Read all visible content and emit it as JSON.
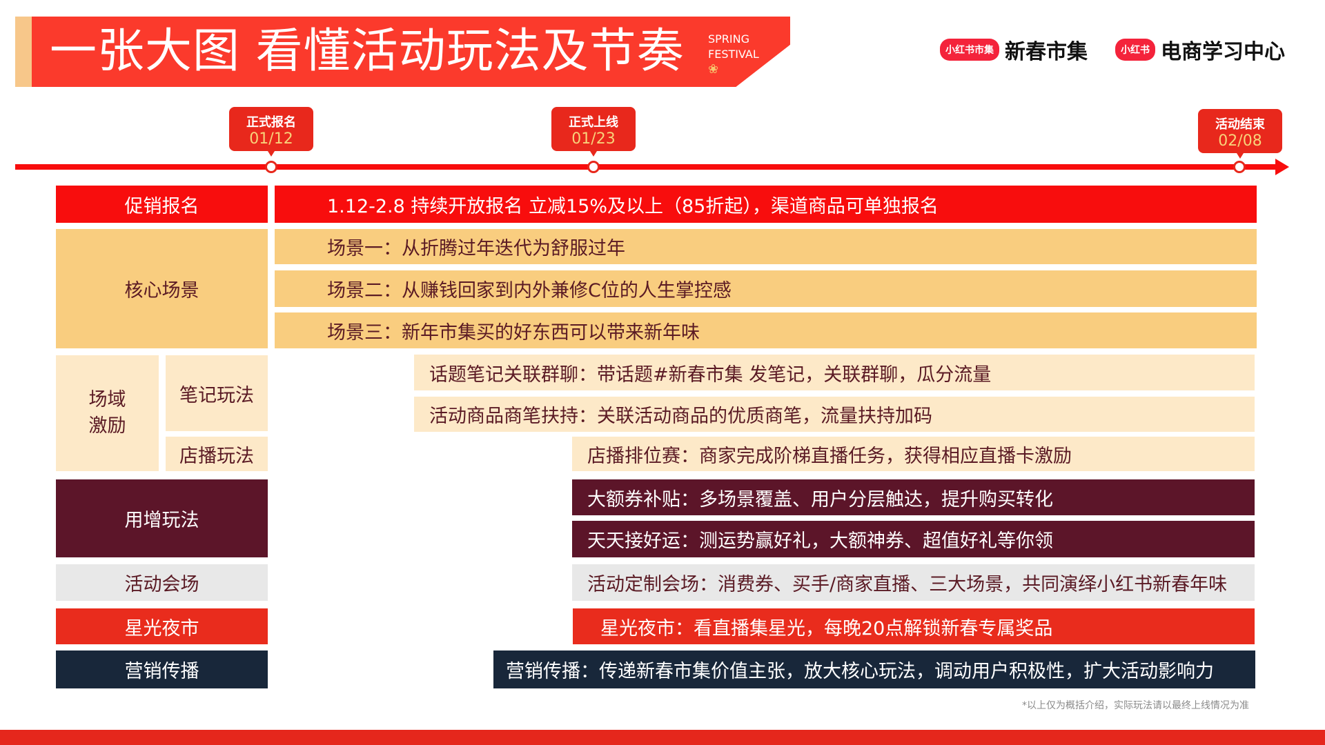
{
  "header": {
    "title": "一张大图 看懂活动玩法及节奏",
    "spring": "SPRING",
    "festival": "FESTIVAL",
    "logo1": {
      "badge": "小红书市集",
      "text": "新春市集"
    },
    "logo2": {
      "badge": "小红书",
      "text": "电商学习中心"
    }
  },
  "timeline": [
    {
      "label": "正式报名",
      "date": "01/12"
    },
    {
      "label": "正式上线",
      "date": "01/23"
    },
    {
      "label": "活动结束",
      "date": "02/08"
    }
  ],
  "rows": {
    "promo": {
      "label": "促销报名",
      "text": "1.12-2.8 持续开放报名 立减15%及以上（85折起），渠道商品可单独报名"
    },
    "core": {
      "label": "核心场景",
      "items": [
        "场景一：从折腾过年迭代为舒服过年",
        "场景二：从赚钱回家到内外兼修C位的人生掌控感",
        "场景三：新年市集买的好东西可以带来新年味"
      ]
    },
    "field": {
      "label": "场域激励",
      "note_label": "笔记玩法",
      "live_label": "店播玩法",
      "items": [
        "话题笔记关联群聊：带话题#新春市集 发笔记，关联群聊，瓜分流量",
        "活动商品商笔扶持：关联活动商品的优质商笔，流量扶持加码",
        "店播排位赛：商家完成阶梯直播任务，获得相应直播卡激励"
      ]
    },
    "growth": {
      "label": "用增玩法",
      "items": [
        "大额券补贴：多场景覆盖、用户分层触达，提升购买转化",
        "天天接好运：测运势赢好礼，大额神券、超值好礼等你领"
      ]
    },
    "venue": {
      "label": "活动会场",
      "text": "活动定制会场：消费券、买手/商家直播、三大场景，共同演绎小红书新春年味"
    },
    "night": {
      "label": "星光夜市",
      "text": "星光夜市：看直播集星光，每晚20点解锁新春专属奖品"
    },
    "marketing": {
      "label": "营销传播",
      "text": "营销传播：传递新春市集价值主张，放大核心玩法，调动用户积极性，扩大活动影响力"
    }
  },
  "footnote": "*以上仅为概括介绍，实际玩法请以最终上线情况为准",
  "colors": {
    "red": "#f80d0d",
    "yellow": "#f9cd7f",
    "cream": "#fde9c8",
    "maroon": "#5c1529",
    "gray": "#e8e8e8",
    "night": "#e92c1d",
    "navy": "#18273a"
  }
}
